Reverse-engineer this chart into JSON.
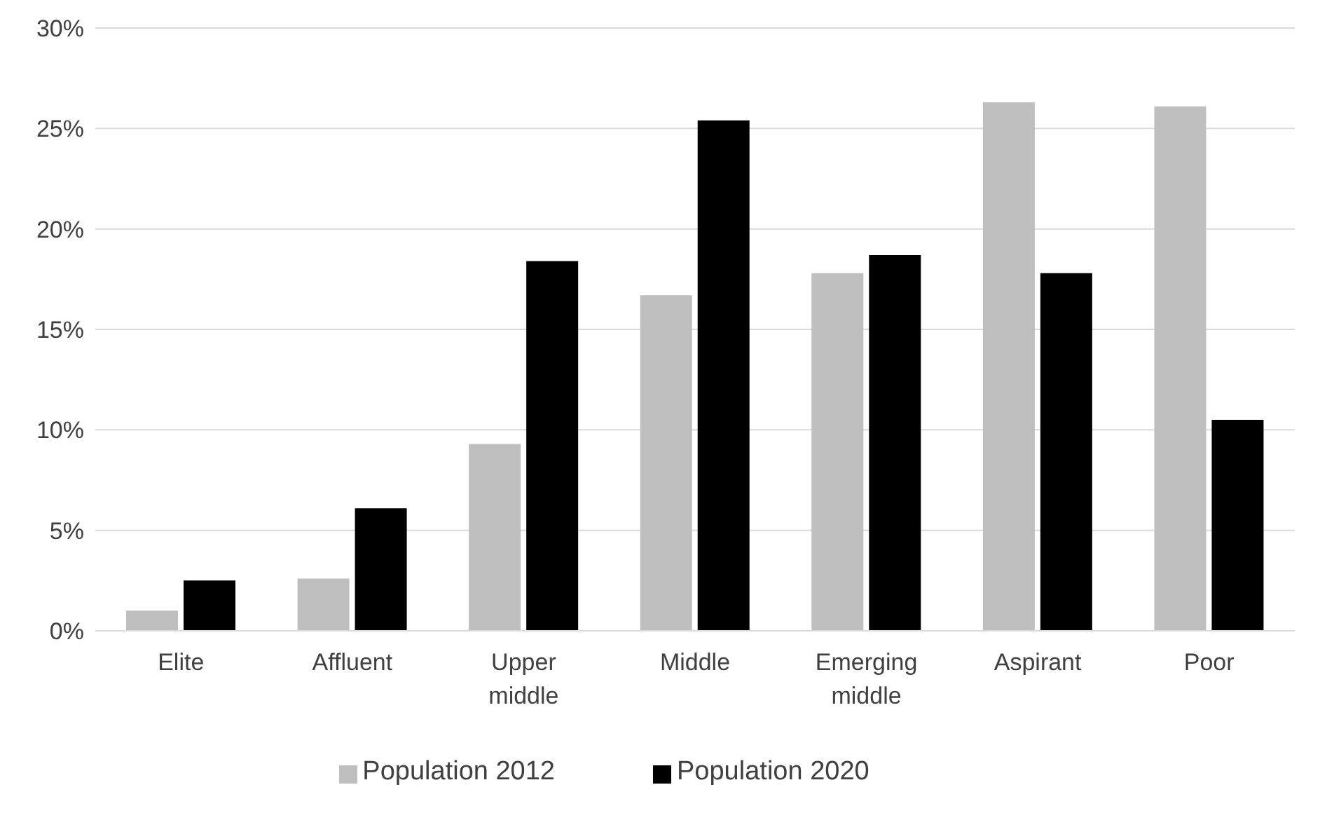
{
  "chart_data": {
    "type": "bar",
    "categories": [
      "Elite",
      "Affluent",
      "Upper middle",
      "Middle",
      "Emerging middle",
      "Aspirant",
      "Poor"
    ],
    "series": [
      {
        "name": "Population 2012",
        "color": "#bfbfbf",
        "values": [
          1.0,
          2.6,
          9.3,
          16.7,
          17.8,
          26.3,
          26.1
        ]
      },
      {
        "name": "Population 2020",
        "color": "#000000",
        "values": [
          2.5,
          6.1,
          18.4,
          25.4,
          18.7,
          17.8,
          10.5
        ]
      }
    ],
    "ylim": [
      0,
      30
    ],
    "yticks": [
      {
        "value": 0,
        "label": "0%"
      },
      {
        "value": 5,
        "label": "5%"
      },
      {
        "value": 10,
        "label": "10%"
      },
      {
        "value": 15,
        "label": "15%"
      },
      {
        "value": 20,
        "label": "20%"
      },
      {
        "value": 25,
        "label": "25%"
      },
      {
        "value": 30,
        "label": "30%"
      }
    ],
    "grid": "y",
    "legend": "bottom"
  }
}
